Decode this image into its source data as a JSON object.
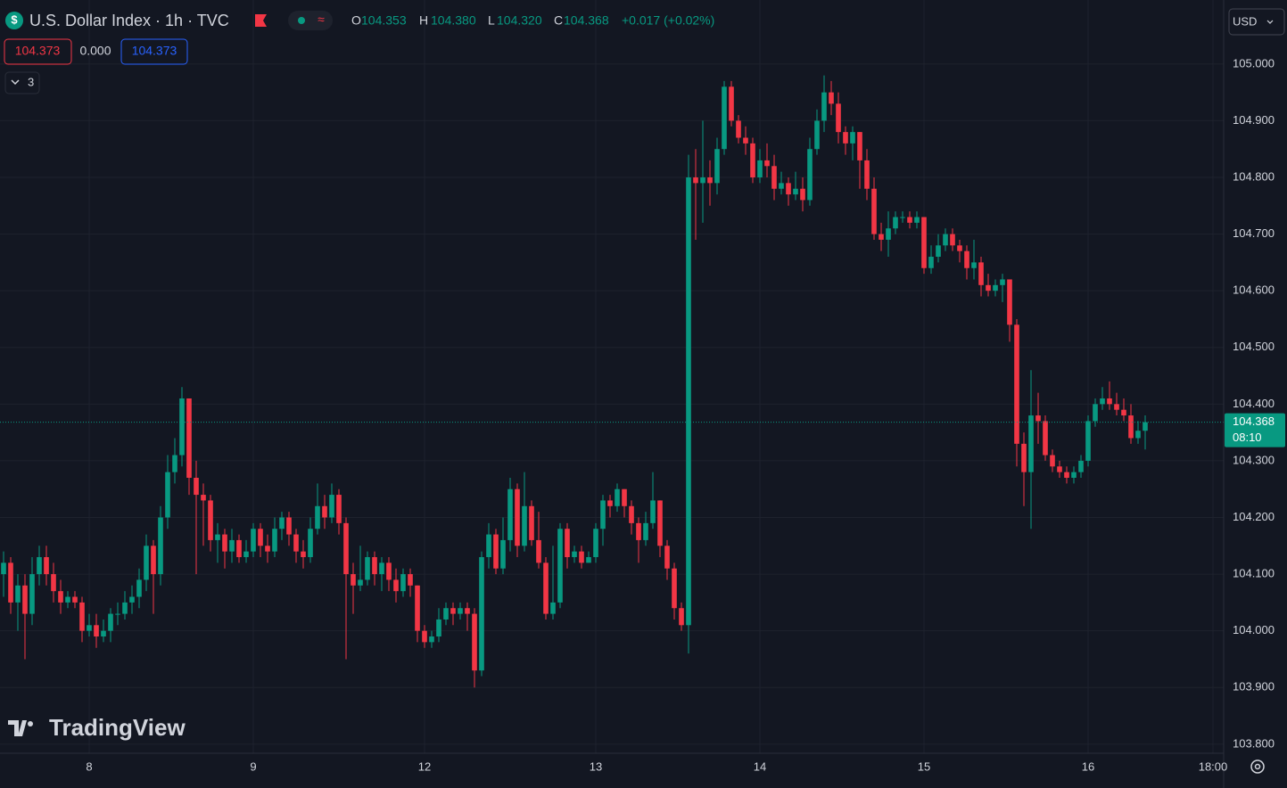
{
  "header": {
    "title": "U.S. Dollar Index · 1h · TVC",
    "o_label": "O",
    "o": "104.353",
    "h_label": "H",
    "h": "104.380",
    "l_label": "L",
    "l": "104.320",
    "c_label": "C",
    "c": "104.368",
    "change": "+0.017 (+0.02%)",
    "sell": "104.373",
    "spread": "0.000",
    "buy": "104.373",
    "indicators": "3",
    "currency": "USD",
    "logo": "TradingView"
  },
  "chart_data": {
    "type": "candlestick",
    "up_color": "#089981",
    "down_color": "#f23645",
    "grid": true,
    "countdown": "08:10",
    "xlim": [
      -0.5,
      171
    ],
    "xticks": [
      {
        "value": 12,
        "label": "8"
      },
      {
        "value": 35,
        "label": "9"
      },
      {
        "value": 59,
        "label": "12"
      },
      {
        "value": 83,
        "label": "13"
      },
      {
        "value": 106,
        "label": "14"
      },
      {
        "value": 129,
        "label": "15"
      },
      {
        "value": 152,
        "label": "16"
      },
      {
        "value": 169.5,
        "label": "18:00"
      }
    ],
    "ylim": [
      103.784,
      105.113
    ],
    "yticks": [
      {
        "value": 103.8,
        "label": "103.800"
      },
      {
        "value": 103.9,
        "label": "103.900"
      },
      {
        "value": 104,
        "label": "104.000"
      },
      {
        "value": 104.1,
        "label": "104.100"
      },
      {
        "value": 104.2,
        "label": "104.200"
      },
      {
        "value": 104.3,
        "label": "104.300"
      },
      {
        "value": 104.4,
        "label": "104.400"
      },
      {
        "value": 104.5,
        "label": "104.500"
      },
      {
        "value": 104.6,
        "label": "104.600"
      },
      {
        "value": 104.7,
        "label": "104.700"
      },
      {
        "value": 104.8,
        "label": "104.800"
      },
      {
        "value": 104.9,
        "label": "104.900"
      },
      {
        "value": 105,
        "label": "105.000"
      }
    ],
    "open": [
      104.1,
      104.12,
      104.05,
      104.08,
      104.03,
      104.1,
      104.13,
      104.1,
      104.07,
      104.05,
      104.06,
      104.05,
      104.0,
      104.01,
      103.99,
      104.0,
      104.03,
      104.03,
      104.05,
      104.06,
      104.09,
      104.15,
      104.1,
      104.2,
      104.28,
      104.31,
      104.41,
      104.27,
      104.24,
      104.23,
      104.16,
      104.17,
      104.14,
      104.16,
      104.13,
      104.14,
      104.18,
      104.15,
      104.14,
      104.18,
      104.2,
      104.17,
      104.14,
      104.13,
      104.18,
      104.22,
      104.2,
      104.24,
      104.19,
      104.1,
      104.08,
      104.09,
      104.13,
      104.1,
      104.12,
      104.09,
      104.07,
      104.1,
      104.08,
      104.0,
      103.98,
      103.99,
      104.02,
      104.04,
      104.03,
      104.04,
      104.03,
      103.93,
      104.13,
      104.17,
      104.11,
      104.16,
      104.25,
      104.15,
      104.22,
      104.16,
      104.12,
      104.03,
      104.05,
      104.18,
      104.13,
      104.14,
      104.12,
      104.13,
      104.18,
      104.23,
      104.22,
      104.25,
      104.22,
      104.19,
      104.16,
      104.19,
      104.23,
      104.15,
      104.11,
      104.04,
      104.01,
      104.8,
      104.79,
      104.8,
      104.79,
      104.85,
      104.96,
      104.9,
      104.87,
      104.86,
      104.8,
      104.83,
      104.82,
      104.78,
      104.79,
      104.77,
      104.78,
      104.76,
      104.85,
      104.9,
      104.95,
      104.93,
      104.88,
      104.86,
      104.88,
      104.83,
      104.78,
      104.7,
      104.69,
      104.71,
      104.73,
      104.73,
      104.72,
      104.73,
      104.64,
      104.66,
      104.68,
      104.7,
      104.68,
      104.67,
      104.64,
      104.65,
      104.61,
      104.6,
      104.61,
      104.62,
      104.54,
      104.33,
      104.28,
      104.38,
      104.37,
      104.31,
      104.29,
      104.28,
      104.27,
      104.28,
      104.3,
      104.37,
      104.4,
      104.41,
      104.4,
      104.39,
      104.38,
      104.34,
      104.353
    ],
    "high": [
      104.14,
      104.13,
      104.1,
      104.1,
      104.13,
      104.15,
      104.15,
      104.12,
      104.09,
      104.07,
      104.07,
      104.06,
      104.03,
      104.03,
      104.02,
      104.04,
      104.05,
      104.07,
      104.08,
      104.11,
      104.17,
      104.16,
      104.22,
      104.31,
      104.34,
      104.43,
      104.41,
      104.3,
      104.26,
      104.24,
      104.19,
      104.18,
      104.18,
      104.17,
      104.16,
      104.19,
      104.19,
      104.17,
      104.2,
      104.21,
      104.21,
      104.18,
      104.16,
      104.2,
      104.26,
      104.24,
      104.26,
      104.25,
      104.2,
      104.12,
      104.15,
      104.14,
      104.14,
      104.13,
      104.13,
      104.11,
      104.11,
      104.11,
      104.08,
      104.01,
      104.0,
      104.04,
      104.05,
      104.05,
      104.05,
      104.05,
      104.04,
      104.14,
      104.19,
      104.18,
      104.2,
      104.27,
      104.26,
      104.28,
      104.23,
      104.21,
      104.13,
      104.15,
      104.19,
      104.19,
      104.15,
      104.15,
      104.14,
      104.19,
      104.24,
      104.24,
      104.26,
      104.25,
      104.23,
      104.2,
      104.21,
      104.28,
      104.23,
      104.16,
      104.12,
      104.05,
      104.84,
      104.85,
      104.9,
      104.83,
      104.87,
      104.97,
      104.97,
      104.91,
      104.89,
      104.87,
      104.85,
      104.86,
      104.84,
      104.81,
      104.8,
      104.81,
      104.8,
      104.87,
      104.92,
      104.98,
      104.97,
      104.95,
      104.89,
      104.89,
      104.88,
      104.85,
      104.8,
      104.72,
      104.74,
      104.74,
      104.74,
      104.74,
      104.74,
      104.73,
      104.68,
      104.7,
      104.71,
      104.71,
      104.69,
      104.68,
      104.69,
      104.66,
      104.63,
      104.62,
      104.63,
      104.62,
      104.55,
      104.35,
      104.46,
      104.42,
      104.38,
      104.32,
      104.3,
      104.29,
      104.29,
      104.31,
      104.38,
      104.41,
      104.43,
      104.44,
      104.42,
      104.41,
      104.4,
      104.37,
      104.38
    ],
    "low": [
      104.06,
      104.03,
      104.0,
      103.95,
      104.01,
      104.08,
      104.08,
      104.05,
      104.03,
      104.04,
      104.04,
      103.98,
      103.99,
      103.97,
      103.98,
      103.98,
      104.01,
      104.02,
      104.03,
      104.04,
      104.07,
      104.03,
      104.08,
      104.18,
      104.26,
      104.29,
      104.24,
      104.1,
      104.15,
      104.14,
      104.12,
      104.11,
      104.12,
      104.12,
      104.12,
      104.13,
      104.13,
      104.12,
      104.13,
      104.16,
      104.15,
      104.12,
      104.11,
      104.12,
      104.17,
      104.18,
      104.19,
      104.17,
      103.95,
      104.03,
      104.07,
      104.08,
      104.08,
      104.07,
      104.07,
      104.05,
      104.06,
      104.06,
      103.98,
      103.97,
      103.97,
      103.98,
      104.01,
      104.01,
      104.02,
      104.0,
      103.9,
      103.92,
      104.11,
      104.1,
      104.1,
      104.14,
      104.13,
      104.14,
      104.15,
      104.11,
      104.02,
      104.02,
      104.04,
      104.11,
      104.12,
      104.11,
      104.12,
      104.12,
      104.15,
      104.2,
      104.21,
      104.2,
      104.17,
      104.12,
      104.15,
      104.18,
      104.13,
      104.09,
      104.02,
      104.0,
      103.96,
      104.69,
      104.72,
      104.75,
      104.77,
      104.84,
      104.89,
      104.86,
      104.84,
      104.79,
      104.79,
      104.8,
      104.76,
      104.77,
      104.75,
      104.76,
      104.74,
      104.75,
      104.84,
      104.88,
      104.91,
      104.86,
      104.84,
      104.83,
      104.78,
      104.76,
      104.69,
      104.67,
      104.66,
      104.7,
      104.72,
      104.71,
      104.71,
      104.63,
      104.63,
      104.65,
      104.67,
      104.67,
      104.65,
      104.62,
      104.62,
      104.59,
      104.59,
      104.59,
      104.58,
      104.51,
      104.29,
      104.22,
      104.18,
      104.33,
      104.3,
      104.28,
      104.27,
      104.26,
      104.26,
      104.27,
      104.29,
      104.36,
      104.39,
      104.39,
      104.38,
      104.37,
      104.33,
      104.33,
      104.32
    ],
    "close": [
      104.12,
      104.05,
      104.08,
      104.03,
      104.1,
      104.13,
      104.1,
      104.07,
      104.05,
      104.06,
      104.05,
      104.0,
      104.01,
      103.99,
      104.0,
      104.03,
      104.03,
      104.05,
      104.06,
      104.09,
      104.15,
      104.1,
      104.2,
      104.28,
      104.31,
      104.41,
      104.27,
      104.24,
      104.23,
      104.16,
      104.17,
      104.14,
      104.16,
      104.13,
      104.14,
      104.18,
      104.15,
      104.14,
      104.18,
      104.2,
      104.17,
      104.14,
      104.13,
      104.18,
      104.22,
      104.2,
      104.24,
      104.19,
      104.1,
      104.08,
      104.09,
      104.13,
      104.1,
      104.12,
      104.09,
      104.07,
      104.1,
      104.08,
      104.0,
      103.98,
      103.99,
      104.02,
      104.04,
      104.03,
      104.04,
      104.03,
      103.93,
      104.13,
      104.17,
      104.11,
      104.16,
      104.25,
      104.15,
      104.22,
      104.16,
      104.12,
      104.03,
      104.05,
      104.18,
      104.13,
      104.14,
      104.12,
      104.13,
      104.18,
      104.23,
      104.22,
      104.25,
      104.22,
      104.19,
      104.16,
      104.19,
      104.23,
      104.15,
      104.11,
      104.04,
      104.01,
      104.8,
      104.79,
      104.8,
      104.79,
      104.85,
      104.96,
      104.9,
      104.87,
      104.86,
      104.8,
      104.83,
      104.82,
      104.78,
      104.79,
      104.77,
      104.78,
      104.76,
      104.85,
      104.9,
      104.95,
      104.93,
      104.88,
      104.86,
      104.88,
      104.83,
      104.78,
      104.7,
      104.69,
      104.71,
      104.73,
      104.73,
      104.72,
      104.73,
      104.64,
      104.66,
      104.68,
      104.7,
      104.68,
      104.67,
      104.64,
      104.65,
      104.61,
      104.6,
      104.61,
      104.62,
      104.54,
      104.33,
      104.28,
      104.38,
      104.37,
      104.31,
      104.29,
      104.28,
      104.27,
      104.28,
      104.3,
      104.37,
      104.4,
      104.41,
      104.4,
      104.39,
      104.38,
      104.34,
      104.353,
      104.368
    ]
  }
}
